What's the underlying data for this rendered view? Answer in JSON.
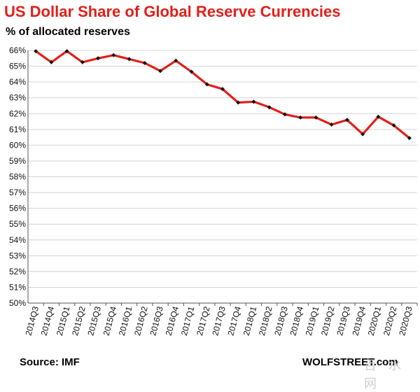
{
  "colors": {
    "title": "#e0201a",
    "line": "#e0201a",
    "marker": "#111111",
    "grid": "#d4d4d4",
    "axis": "#555555"
  },
  "footer": {
    "source": "Source: IMF",
    "brand": "WOLFSTREET.com"
  },
  "chart_data": {
    "type": "line",
    "title": "US Dollar Share of Global  Reserve Currencies",
    "subtitle": "% of allocated reserves",
    "xlabel": "",
    "ylabel": "",
    "ylim": [
      50,
      66
    ],
    "yticks": [
      66,
      65,
      64,
      63,
      62,
      61,
      60,
      59,
      58,
      57,
      56,
      55,
      54,
      53,
      52,
      51,
      50
    ],
    "ytick_suffix": "%",
    "grid": true,
    "categories": [
      "2014Q3",
      "2014Q4",
      "2015Q1",
      "2015Q2",
      "2015Q3",
      "2015Q4",
      "2016Q1",
      "2016Q2",
      "2016Q3",
      "2016Q4",
      "2017Q1",
      "2017Q2",
      "2017Q3",
      "2017Q4",
      "2018Q1",
      "2018Q2",
      "2018Q3",
      "2018Q4",
      "2019Q1",
      "2019Q2",
      "2019Q3",
      "2019Q4",
      "2020Q1",
      "2020Q2",
      "2020Q3"
    ],
    "series": [
      {
        "name": "US Dollar share",
        "values": [
          65.95,
          65.25,
          65.95,
          65.25,
          65.5,
          65.7,
          65.45,
          65.2,
          64.7,
          65.35,
          64.65,
          63.85,
          63.55,
          62.7,
          62.75,
          62.4,
          61.95,
          61.75,
          61.75,
          61.3,
          61.6,
          60.7,
          61.8,
          61.25,
          60.45
        ]
      }
    ]
  }
}
